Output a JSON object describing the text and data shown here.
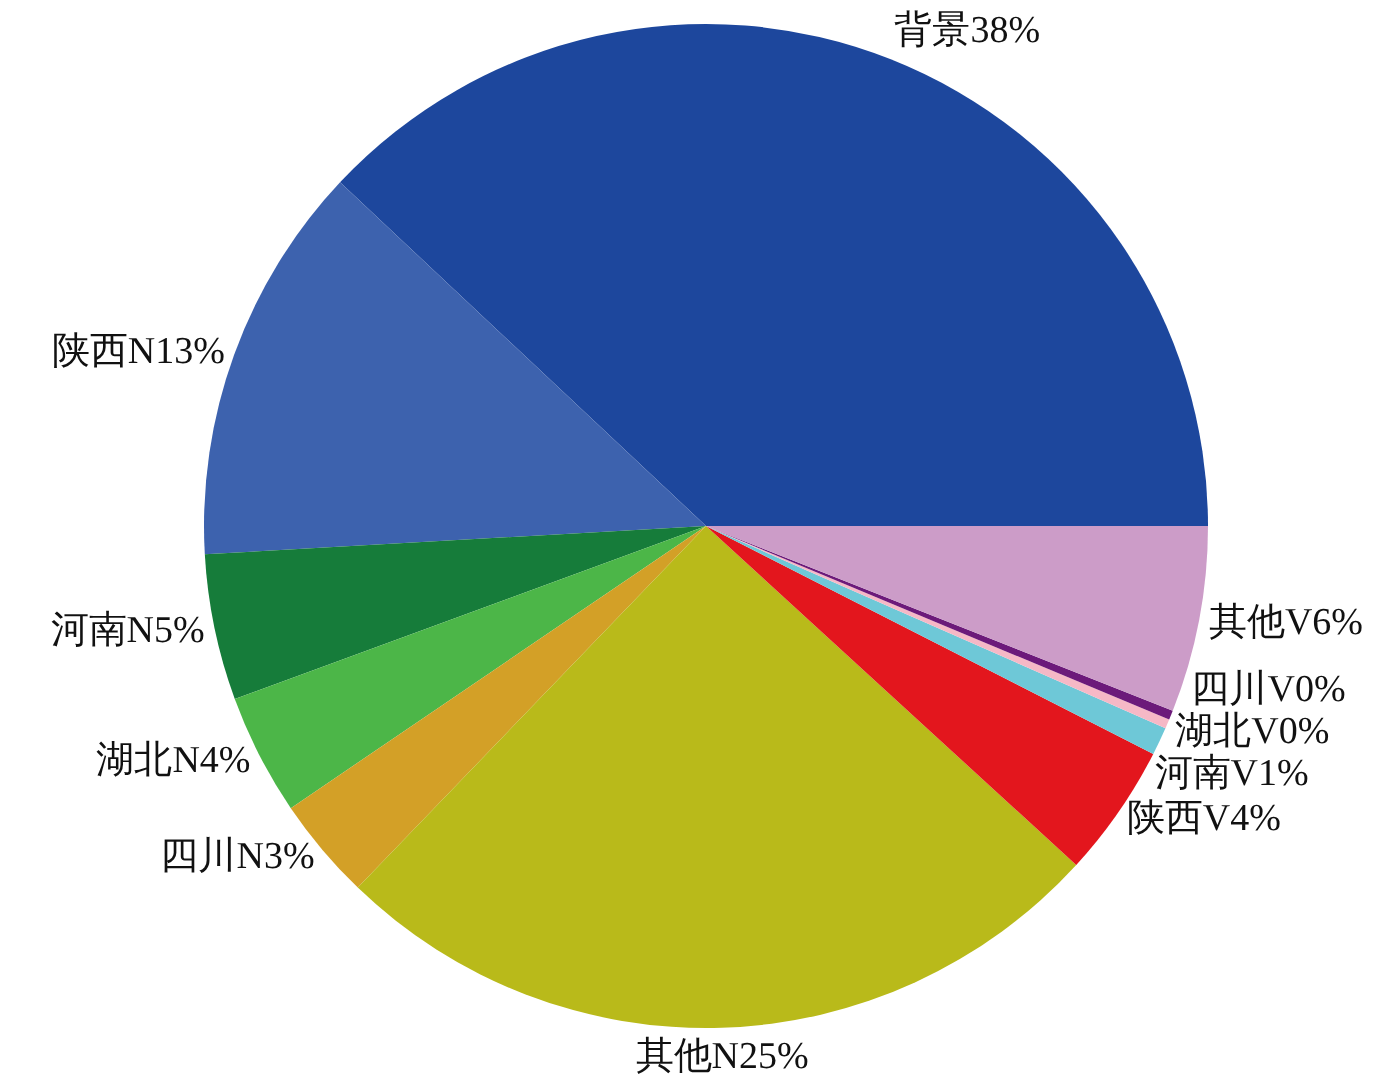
{
  "chart_data": {
    "type": "pie",
    "categories": [
      "背景",
      "陕西N",
      "河南N",
      "湖北N",
      "四川N",
      "其他N",
      "陕西V",
      "河南V",
      "湖北V",
      "四川V",
      "其他V"
    ],
    "values": [
      38.0,
      12.9,
      4.7,
      3.9,
      3.3,
      25.4,
      4.3,
      0.9,
      0.3,
      0.3,
      6.0
    ],
    "value_labels": [
      "38%",
      "13%",
      "5%",
      "4%",
      "3%",
      "25%",
      "4%",
      "1%",
      "0%",
      "0%",
      "6%"
    ],
    "colors": [
      "#1d479d",
      "#3d62ae",
      "#167c3a",
      "#4cb648",
      "#d3a027",
      "#b9ba1a",
      "#e3161d",
      "#6ec8d7",
      "#f6b8c6",
      "#6c1a7a",
      "#cc9cc8"
    ]
  }
}
